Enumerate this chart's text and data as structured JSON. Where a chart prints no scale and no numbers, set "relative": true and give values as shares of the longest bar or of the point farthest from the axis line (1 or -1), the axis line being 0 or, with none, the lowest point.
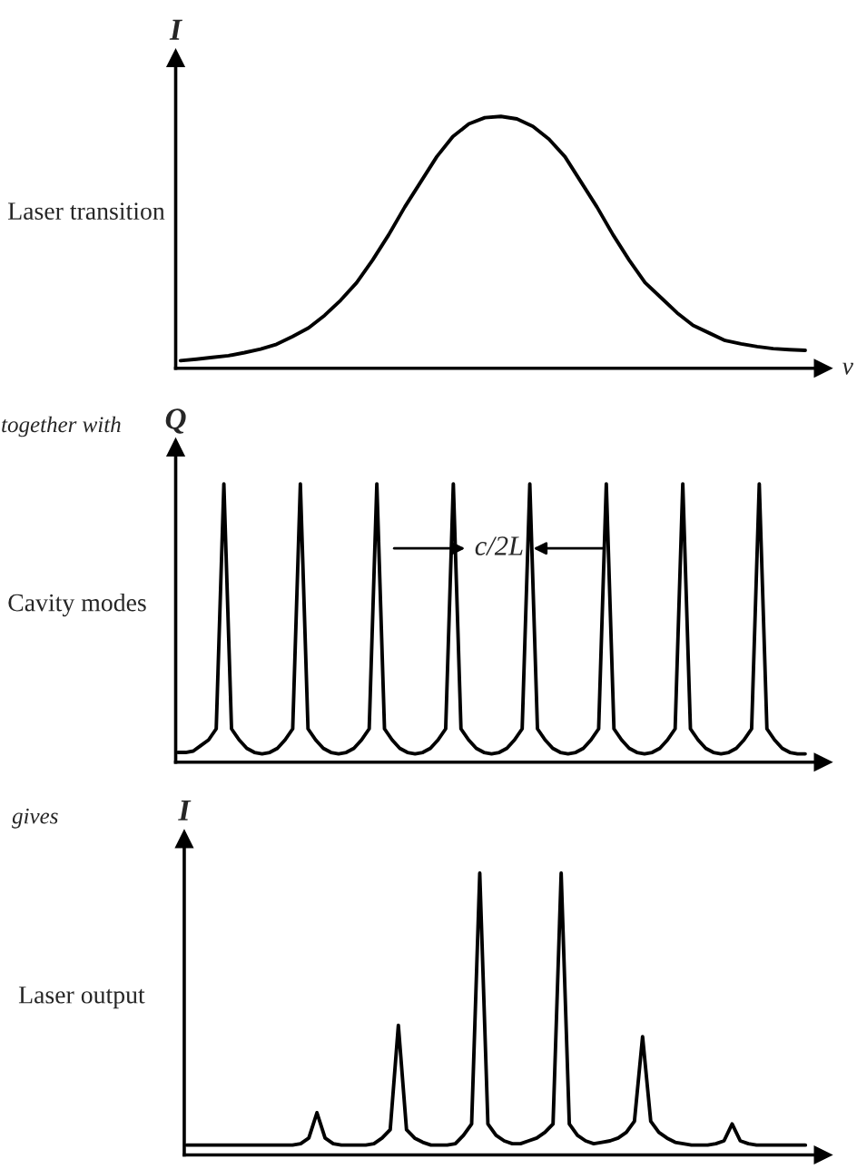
{
  "chart_data": [
    {
      "type": "line",
      "title": "I",
      "ylabel": "Laser transition",
      "xlabel": "ν",
      "relative": true,
      "categories": [
        null,
        null,
        null,
        null,
        null,
        null,
        null,
        null,
        null,
        null,
        null,
        null,
        null,
        null,
        null,
        null,
        null,
        null,
        null,
        null,
        null,
        null,
        null,
        null,
        null,
        null,
        null,
        null,
        null,
        null,
        null,
        null,
        null,
        null,
        null,
        null,
        null,
        null,
        null,
        null
      ],
      "series": [
        {
          "color": "#000000",
          "values": [
            0.03,
            0.036,
            0.043,
            0.05,
            0.062,
            0.076,
            0.095,
            0.126,
            0.16,
            0.21,
            0.27,
            0.34,
            0.43,
            0.53,
            0.64,
            0.74,
            0.84,
            0.92,
            0.97,
            0.995,
            1.0,
            0.99,
            0.96,
            0.91,
            0.84,
            0.74,
            0.64,
            0.53,
            0.43,
            0.34,
            0.28,
            0.22,
            0.17,
            0.14,
            0.11,
            0.097,
            0.086,
            0.078,
            0.074,
            0.071
          ]
        }
      ]
    },
    {
      "type": "line",
      "title": "Q",
      "ylabel": "Cavity modes",
      "relative": true,
      "annotations": [
        "together with",
        "c/2L"
      ],
      "categories": [
        null,
        null,
        null,
        null,
        null,
        null,
        null,
        null,
        null,
        null,
        null,
        null,
        null,
        null,
        null,
        null,
        null,
        null,
        null,
        null,
        null,
        null,
        null,
        null,
        null,
        null,
        null,
        null,
        null,
        null,
        null,
        null,
        null,
        null,
        null,
        null,
        null,
        null,
        null,
        null,
        null,
        null,
        null,
        null,
        null,
        null,
        null,
        null,
        null,
        null,
        null,
        null,
        null,
        null,
        null,
        null,
        null,
        null,
        null,
        null,
        null,
        null,
        null,
        null,
        null,
        null,
        null,
        null,
        null,
        null,
        null,
        null,
        null,
        null,
        null,
        null,
        null,
        null,
        null,
        null,
        null,
        null,
        null
      ],
      "series": [
        {
          "color": "#000000",
          "values": [
            0.035,
            0.035,
            0.04,
            0.06,
            0.08,
            0.12,
            1,
            0.12,
            0.08,
            0.05,
            0.035,
            0.03,
            0.035,
            0.05,
            0.08,
            0.12,
            1,
            0.12,
            0.08,
            0.05,
            0.035,
            0.03,
            0.035,
            0.05,
            0.08,
            0.12,
            1,
            0.12,
            0.08,
            0.05,
            0.035,
            0.03,
            0.035,
            0.05,
            0.08,
            0.12,
            1,
            0.12,
            0.08,
            0.05,
            0.035,
            0.03,
            0.035,
            0.05,
            0.08,
            0.12,
            1,
            0.12,
            0.08,
            0.05,
            0.035,
            0.03,
            0.035,
            0.05,
            0.08,
            0.12,
            1,
            0.12,
            0.08,
            0.05,
            0.035,
            0.03,
            0.035,
            0.05,
            0.08,
            0.12,
            1,
            0.12,
            0.08,
            0.05,
            0.035,
            0.03,
            0.035,
            0.05,
            0.08,
            0.12,
            1,
            0.12,
            0.08,
            0.05,
            0.035,
            0.03,
            0.03
          ]
        }
      ]
    },
    {
      "type": "line",
      "title": "I",
      "ylabel": "Laser output",
      "relative": true,
      "annotations": [
        "gives"
      ],
      "categories": [
        null,
        null,
        null,
        null,
        null,
        null,
        null,
        null,
        null,
        null,
        null,
        null,
        null,
        null,
        null,
        null,
        null,
        null,
        null,
        null,
        null,
        null,
        null,
        null,
        null,
        null,
        null,
        null,
        null,
        null,
        null,
        null,
        null,
        null,
        null,
        null,
        null,
        null,
        null,
        null,
        null,
        null,
        null,
        null,
        null,
        null,
        null,
        null,
        null,
        null,
        null,
        null,
        null,
        null,
        null,
        null,
        null,
        null,
        null,
        null,
        null,
        null,
        null,
        null,
        null,
        null,
        null,
        null,
        null,
        null,
        null,
        null,
        null,
        null,
        null,
        null,
        null
      ],
      "series": [
        {
          "color": "#000000",
          "values": [
            0.035,
            0.035,
            0.035,
            0.035,
            0.035,
            0.035,
            0.035,
            0.035,
            0.035,
            0.035,
            0.035,
            0.035,
            0.035,
            0.035,
            0.04,
            0.06,
            0.15,
            0.06,
            0.04,
            0.035,
            0.035,
            0.035,
            0.035,
            0.04,
            0.06,
            0.09,
            0.46,
            0.09,
            0.06,
            0.045,
            0.035,
            0.035,
            0.035,
            0.04,
            0.07,
            0.11,
            1,
            0.11,
            0.07,
            0.05,
            0.04,
            0.04,
            0.05,
            0.06,
            0.08,
            0.11,
            1,
            0.11,
            0.07,
            0.05,
            0.04,
            0.045,
            0.05,
            0.06,
            0.08,
            0.12,
            0.42,
            0.12,
            0.08,
            0.06,
            0.045,
            0.04,
            0.035,
            0.035,
            0.035,
            0.04,
            0.05,
            0.11,
            0.05,
            0.04,
            0.035,
            0.035,
            0.035,
            0.035,
            0.035,
            0.035,
            0.035
          ]
        }
      ]
    }
  ]
}
